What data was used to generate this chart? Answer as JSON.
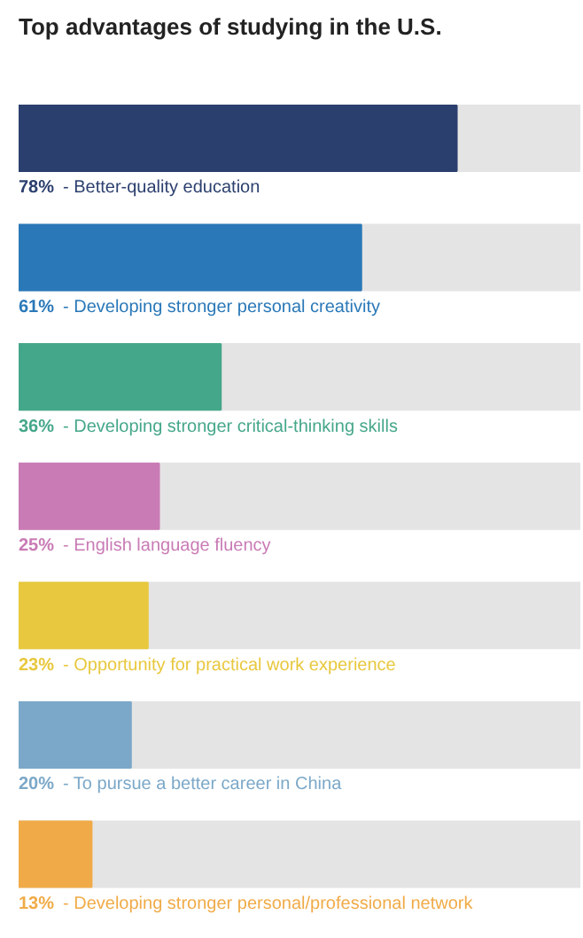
{
  "chart_data": {
    "type": "bar",
    "orientation": "horizontal",
    "title": "Top advantages of studying in the U.S.",
    "categories": [
      "- Better-quality education",
      "- Developing stronger personal creativity",
      "- Developing stronger critical-thinking skills",
      "- English language fluency",
      "- Opportunity for practical work experience",
      "- To pursue a better career in China",
      "- Developing stronger personal/professional network"
    ],
    "values": [
      78,
      61,
      36,
      25,
      23,
      20,
      13
    ],
    "value_labels": [
      "78%",
      "61%",
      "36%",
      "25%",
      "23%",
      "20%",
      "13%"
    ],
    "colors": [
      "#2b3f6e",
      "#2a78b8",
      "#45a78a",
      "#c97bb5",
      "#e8c83e",
      "#7ba8c8",
      "#f0ab48"
    ],
    "xlim": [
      0,
      100
    ],
    "tick_labels": false,
    "grid": false
  }
}
